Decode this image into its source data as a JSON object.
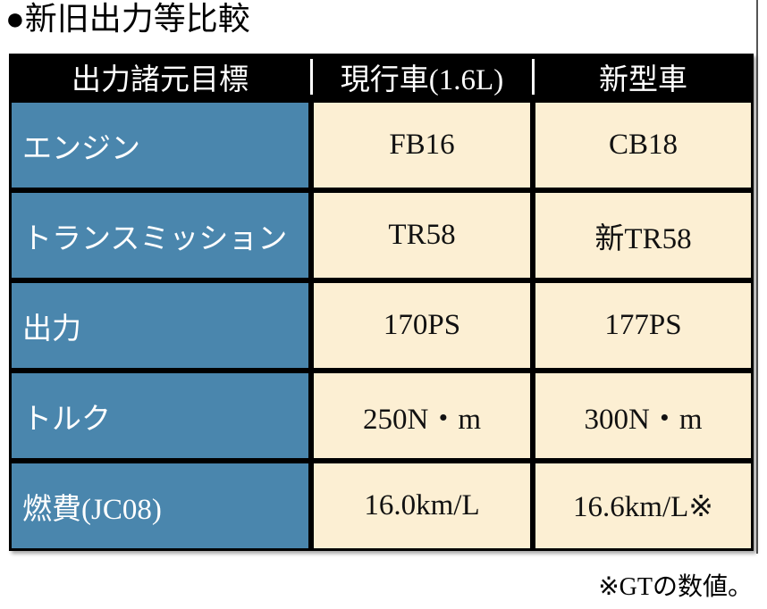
{
  "header": {
    "title": "●新旧出力等比較"
  },
  "table": {
    "columns": [
      "出力諸元目標",
      "現行車(1.6L)",
      "新型車"
    ],
    "rows": [
      [
        "エンジン",
        "FB16",
        "CB18"
      ],
      [
        "トランスミッション",
        "TR58",
        "新TR58"
      ],
      [
        "出力",
        "170PS",
        "177PS"
      ],
      [
        "トルク",
        "250N・m",
        "300N・m"
      ],
      [
        "燃費(JC08)",
        "16.0km/L",
        "16.6km/L※"
      ]
    ]
  },
  "footnote": "※GTの数値。"
}
